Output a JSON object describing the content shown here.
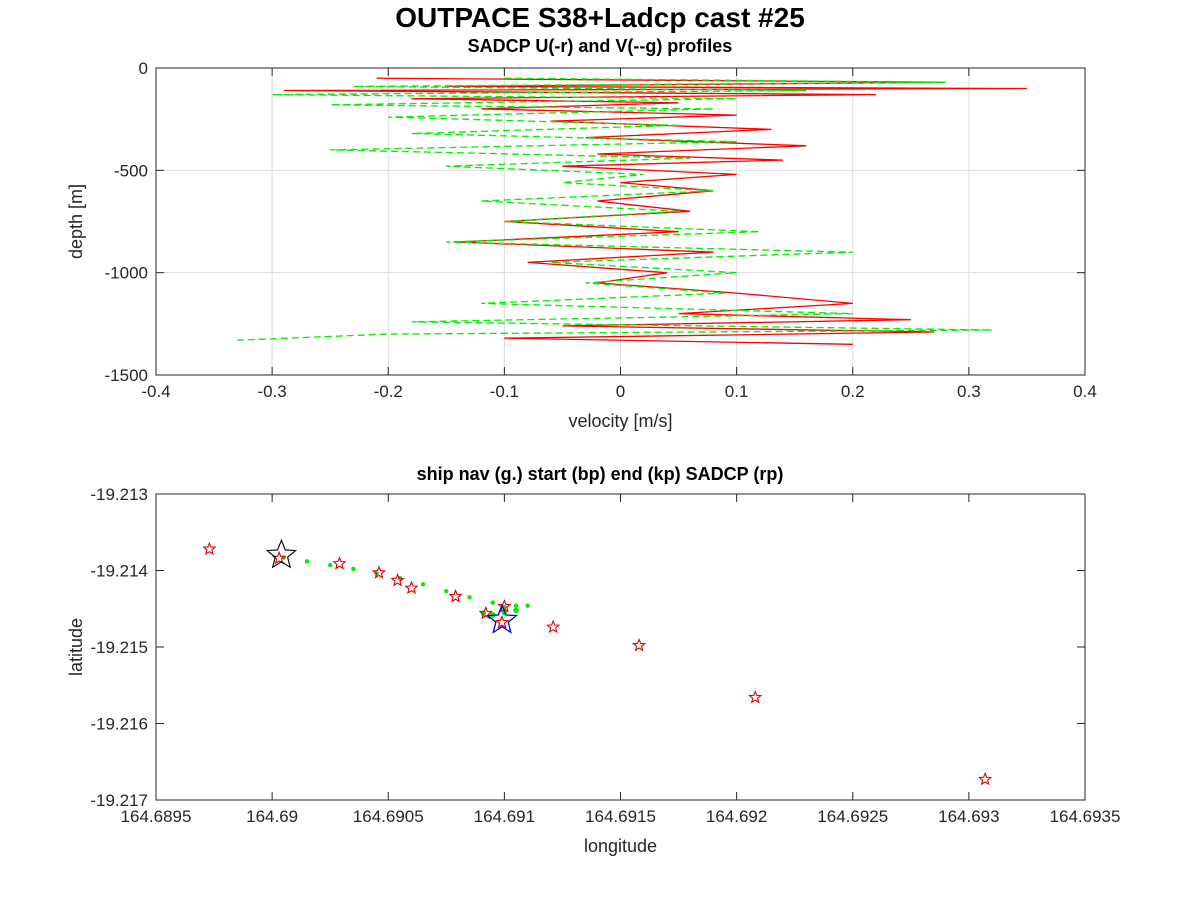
{
  "figure": {
    "title": "OUTPACE S38+Ladcp cast #25"
  },
  "chart_data": [
    {
      "type": "line",
      "title": "SADCP U(-r) and V(--g) profiles",
      "xlabel": "velocity [m/s]",
      "ylabel": "depth [m]",
      "xlim": [
        -0.4,
        0.4
      ],
      "ylim": [
        -1500,
        0
      ],
      "xticks": [
        -0.4,
        -0.3,
        -0.2,
        -0.1,
        0,
        0.1,
        0.2,
        0.3,
        0.4
      ],
      "xtick_labels": [
        "-0.4",
        "-0.3",
        "-0.2",
        "-0.1",
        "0",
        "0.1",
        "0.2",
        "0.3",
        "0.4"
      ],
      "yticks": [
        -1500,
        -1000,
        -500,
        0
      ],
      "ytick_labels": [
        "-1500",
        "-1000",
        "-500",
        "0"
      ],
      "grid": true,
      "series": [
        {
          "color": "#ff0000",
          "style": "solid",
          "depth": [
            -50,
            -70,
            -90,
            -100,
            -110,
            -130,
            -150,
            -170,
            -200,
            -230,
            -260,
            -300,
            -340,
            -380,
            -420,
            -450,
            -480,
            -520,
            -560,
            -600,
            -650,
            -700,
            -750,
            -800,
            -850,
            -900,
            -950,
            -1000,
            -1050,
            -1100,
            -1150,
            -1200,
            -1230,
            -1260,
            -1290,
            -1320,
            -1350
          ],
          "values": [
            -0.21,
            0.28,
            -0.15,
            0.35,
            -0.29,
            0.22,
            -0.18,
            0.05,
            -0.12,
            0.1,
            -0.06,
            0.13,
            -0.03,
            0.16,
            -0.02,
            0.14,
            -0.05,
            0.1,
            0.0,
            0.08,
            -0.02,
            0.06,
            -0.1,
            0.05,
            -0.14,
            0.08,
            -0.08,
            0.04,
            -0.02,
            0.1,
            0.2,
            0.05,
            0.25,
            -0.05,
            0.27,
            -0.1,
            0.2
          ]
        },
        {
          "color": "#00ee00",
          "style": "dashed",
          "depth": [
            -50,
            -70,
            -90,
            -110,
            -130,
            -150,
            -180,
            -200,
            -240,
            -280,
            -320,
            -360,
            -400,
            -440,
            -480,
            -520,
            -560,
            -600,
            -650,
            -700,
            -750,
            -800,
            -850,
            -900,
            -950,
            -1000,
            -1050,
            -1100,
            -1150,
            -1200,
            -1240,
            -1280,
            -1300,
            -1330
          ],
          "values": [
            -0.1,
            0.28,
            -0.23,
            0.16,
            -0.3,
            0.1,
            -0.25,
            0.08,
            -0.2,
            0.05,
            -0.18,
            0.1,
            -0.25,
            0.06,
            -0.15,
            0.02,
            -0.05,
            0.08,
            -0.12,
            0.05,
            -0.1,
            0.12,
            -0.15,
            0.2,
            -0.06,
            0.1,
            -0.03,
            0.09,
            -0.12,
            0.2,
            -0.18,
            0.32,
            -0.2,
            -0.33
          ]
        }
      ]
    },
    {
      "type": "scatter",
      "title": "ship nav (g.) start (bp) end (kp) SADCP (rp)",
      "xlabel": "longitude",
      "ylabel": "latitude",
      "xlim": [
        164.6895,
        164.6935
      ],
      "ylim": [
        -19.217,
        -19.213
      ],
      "xticks": [
        164.6895,
        164.69,
        164.6905,
        164.691,
        164.6915,
        164.692,
        164.6925,
        164.693,
        164.6935
      ],
      "xtick_labels": [
        "164.6895",
        "164.69",
        "164.6905",
        "164.691",
        "164.6915",
        "164.692",
        "164.6925",
        "164.693",
        "164.6935"
      ],
      "yticks": [
        -19.217,
        -19.216,
        -19.215,
        -19.214,
        -19.213
      ],
      "ytick_labels": [
        "-19.217",
        "-19.216",
        "-19.215",
        "-19.214",
        "-19.213"
      ],
      "grid": false,
      "ship_nav": {
        "color": "#00ee00",
        "x": [
          164.69005,
          164.69015,
          164.69025,
          164.69035,
          164.69045,
          164.69055,
          164.69065,
          164.69075,
          164.69085,
          164.69095,
          164.691,
          164.69105,
          164.6911
        ],
        "y": [
          -19.21383,
          -19.21388,
          -19.21393,
          -19.21398,
          -19.21404,
          -19.2141,
          -19.21418,
          -19.21427,
          -19.21435,
          -19.21442,
          -19.21448,
          -19.21446,
          -19.21446
        ]
      },
      "ship_nav_cluster": {
        "x": [
          164.69091,
          164.69095,
          164.691,
          164.69105
        ],
        "y": [
          -19.21456,
          -19.21458,
          -19.21455,
          -19.21452
        ]
      },
      "sadcp_points": {
        "color": "#dd0000",
        "x": [
          164.68973,
          164.69003,
          164.69029,
          164.69046,
          164.69054,
          164.6906,
          164.69079,
          164.69092,
          164.69099,
          164.691,
          164.69121,
          164.69158,
          164.69208,
          164.69307
        ],
        "y": [
          -19.21372,
          -19.21384,
          -19.21391,
          -19.21403,
          -19.21413,
          -19.21423,
          -19.21434,
          -19.21456,
          -19.21468,
          -19.21447,
          -19.21474,
          -19.21498,
          -19.21566,
          -19.21673
        ]
      },
      "start": {
        "x": 164.69099,
        "y": -19.21465,
        "color": "#0000cc"
      },
      "end": {
        "x": 164.69004,
        "y": -19.2138,
        "color": "#000000"
      }
    }
  ]
}
